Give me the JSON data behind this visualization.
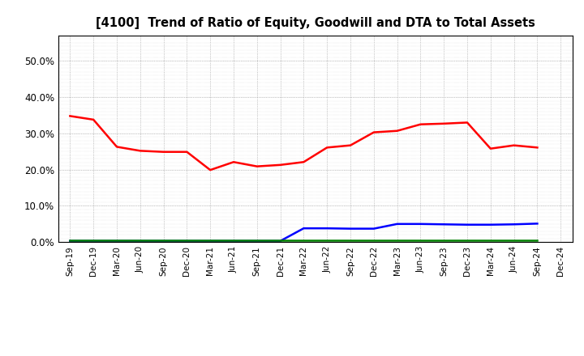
{
  "title": "[4100]  Trend of Ratio of Equity, Goodwill and DTA to Total Assets",
  "x_labels": [
    "Sep-19",
    "Dec-19",
    "Mar-20",
    "Jun-20",
    "Sep-20",
    "Dec-20",
    "Mar-21",
    "Jun-21",
    "Sep-21",
    "Dec-21",
    "Mar-22",
    "Jun-22",
    "Sep-22",
    "Dec-22",
    "Mar-23",
    "Jun-23",
    "Sep-23",
    "Dec-23",
    "Mar-24",
    "Jun-24",
    "Sep-24",
    "Dec-24"
  ],
  "equity": [
    0.348,
    0.338,
    0.263,
    0.252,
    0.249,
    0.249,
    0.199,
    0.221,
    0.209,
    0.213,
    0.221,
    0.261,
    0.267,
    0.303,
    0.307,
    0.325,
    0.327,
    0.33,
    0.258,
    0.267,
    0.261,
    null
  ],
  "goodwill": [
    0.003,
    0.003,
    0.003,
    0.003,
    0.003,
    0.003,
    0.003,
    0.003,
    0.003,
    0.003,
    0.038,
    0.038,
    0.037,
    0.037,
    0.05,
    0.05,
    0.049,
    0.048,
    0.048,
    0.049,
    0.051,
    null
  ],
  "dta": [
    0.005,
    0.005,
    0.005,
    0.005,
    0.005,
    0.005,
    0.005,
    0.005,
    0.005,
    0.005,
    0.005,
    0.005,
    0.005,
    0.005,
    0.005,
    0.005,
    0.005,
    0.005,
    0.005,
    0.005,
    0.005,
    null
  ],
  "equity_color": "#FF0000",
  "goodwill_color": "#0000FF",
  "dta_color": "#008000",
  "ylim": [
    0.0,
    0.57
  ],
  "yticks": [
    0.0,
    0.1,
    0.2,
    0.3,
    0.4,
    0.5
  ],
  "background_color": "#FFFFFF",
  "plot_bg_color": "#FFFFFF",
  "grid_color": "#999999",
  "border_color": "#000000"
}
